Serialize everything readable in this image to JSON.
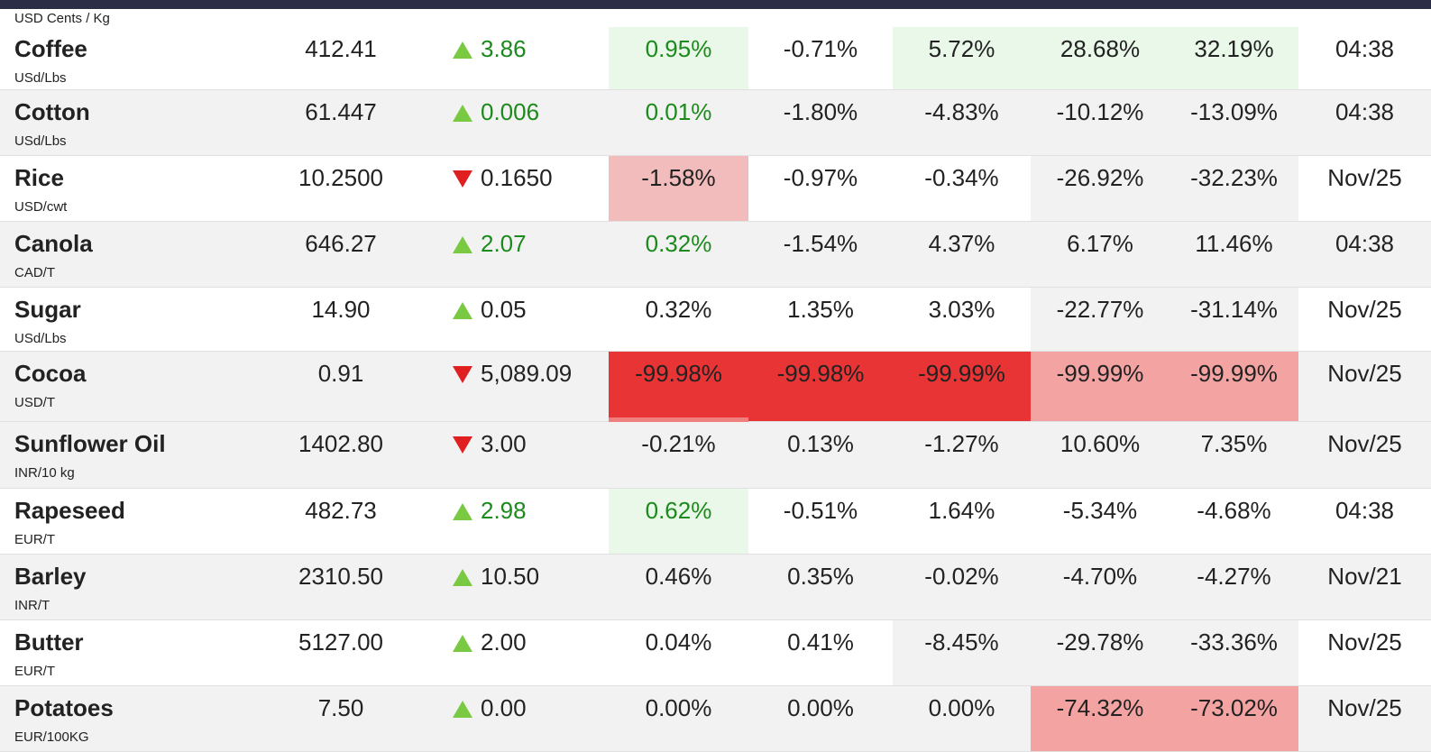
{
  "top_unit": "USD Cents / Kg",
  "table": {
    "rows": [
      {
        "name": "Coffee",
        "unit": "USd/Lbs",
        "price": "412.41",
        "direction": "up",
        "change": "3.86",
        "day": "0.95%",
        "week": "-0.71%",
        "month": "5.72%",
        "ytd": "28.68%",
        "yoy": "32.19%",
        "date": "04:38"
      },
      {
        "name": "Cotton",
        "unit": "USd/Lbs",
        "price": "61.447",
        "direction": "up",
        "change": "0.006",
        "day": "0.01%",
        "week": "-1.80%",
        "month": "-4.83%",
        "ytd": "-10.12%",
        "yoy": "-13.09%",
        "date": "04:38"
      },
      {
        "name": "Rice",
        "unit": "USD/cwt",
        "price": "10.2500",
        "direction": "down",
        "change": "0.1650",
        "day": "-1.58%",
        "week": "-0.97%",
        "month": "-0.34%",
        "ytd": "-26.92%",
        "yoy": "-32.23%",
        "date": "Nov/25"
      },
      {
        "name": "Canola",
        "unit": "CAD/T",
        "price": "646.27",
        "direction": "up",
        "change": "2.07",
        "day": "0.32%",
        "week": "-1.54%",
        "month": "4.37%",
        "ytd": "6.17%",
        "yoy": "11.46%",
        "date": "04:38"
      },
      {
        "name": "Sugar",
        "unit": "USd/Lbs",
        "price": "14.90",
        "direction": "up",
        "change": "0.05",
        "day": "0.32%",
        "week": "1.35%",
        "month": "3.03%",
        "ytd": "-22.77%",
        "yoy": "-31.14%",
        "date": "Nov/25"
      },
      {
        "name": "Cocoa",
        "unit": "USD/T",
        "price": "0.91",
        "direction": "down",
        "change": "5,089.09",
        "day": "-99.98%",
        "week": "-99.98%",
        "month": "-99.99%",
        "ytd": "-99.99%",
        "yoy": "-99.99%",
        "date": "Nov/25"
      },
      {
        "name": "Sunflower Oil",
        "unit": "INR/10 kg",
        "price": "1402.80",
        "direction": "down",
        "change": "3.00",
        "day": "-0.21%",
        "week": "0.13%",
        "month": "-1.27%",
        "ytd": "10.60%",
        "yoy": "7.35%",
        "date": "Nov/25"
      },
      {
        "name": "Rapeseed",
        "unit": "EUR/T",
        "price": "482.73",
        "direction": "up",
        "change": "2.98",
        "day": "0.62%",
        "week": "-0.51%",
        "month": "1.64%",
        "ytd": "-5.34%",
        "yoy": "-4.68%",
        "date": "04:38"
      },
      {
        "name": "Barley",
        "unit": "INR/T",
        "price": "2310.50",
        "direction": "up",
        "change": "10.50",
        "day": "0.46%",
        "week": "0.35%",
        "month": "-0.02%",
        "ytd": "-4.70%",
        "yoy": "-4.27%",
        "date": "Nov/21"
      },
      {
        "name": "Butter",
        "unit": "EUR/T",
        "price": "5127.00",
        "direction": "up",
        "change": "2.00",
        "day": "0.04%",
        "week": "0.41%",
        "month": "-8.45%",
        "ytd": "-29.78%",
        "yoy": "-33.36%",
        "date": "Nov/25"
      },
      {
        "name": "Potatoes",
        "unit": "EUR/100KG",
        "price": "7.50",
        "direction": "up",
        "change": "0.00",
        "day": "0.00%",
        "week": "0.00%",
        "month": "0.00%",
        "ytd": "-74.32%",
        "yoy": "-73.02%",
        "date": "Nov/25"
      }
    ]
  }
}
